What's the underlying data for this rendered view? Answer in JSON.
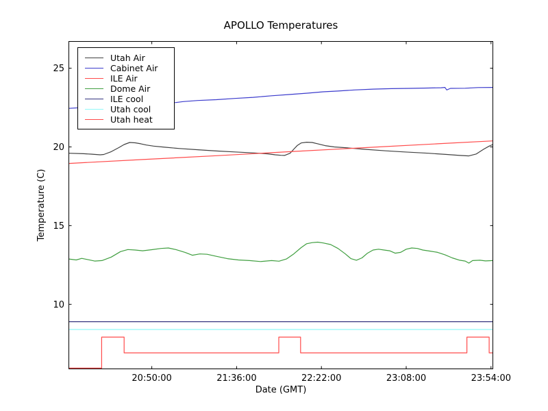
{
  "figure": {
    "title": "APOLLO Temperatures",
    "xlabel": "Date (GMT)",
    "ylabel": "Temperature (C)"
  },
  "chart_data": {
    "type": "line",
    "title": "APOLLO Temperatures",
    "xlabel": "Date (GMT)",
    "ylabel": "Temperature (C)",
    "grid": false,
    "legend_position": "upper left",
    "x_unit": "minutes after 20:05:00 GMT (left edge of plot); right edge = 23:55:00",
    "xlim": [
      0,
      230
    ],
    "ylim": [
      5.9,
      26.7
    ],
    "x_ticks": {
      "offsets": [
        45,
        91,
        137,
        183,
        229
      ],
      "labels": [
        "20:50:00",
        "21:36:00",
        "22:22:00",
        "23:08:00",
        "23:54:00"
      ]
    },
    "y_ticks": {
      "values": [
        10,
        15,
        20,
        25
      ],
      "labels": [
        "10",
        "15",
        "20",
        "25"
      ]
    },
    "series": [
      {
        "name": "Utah Air",
        "color": "#404040",
        "points": [
          [
            0,
            19.6
          ],
          [
            8,
            19.57
          ],
          [
            12,
            19.54
          ],
          [
            17,
            19.5
          ],
          [
            19,
            19.52
          ],
          [
            23,
            19.7
          ],
          [
            27,
            19.95
          ],
          [
            30,
            20.15
          ],
          [
            33,
            20.28
          ],
          [
            36,
            20.26
          ],
          [
            39,
            20.2
          ],
          [
            42,
            20.12
          ],
          [
            46,
            20.05
          ],
          [
            52,
            19.98
          ],
          [
            60,
            19.9
          ],
          [
            70,
            19.82
          ],
          [
            80,
            19.74
          ],
          [
            90,
            19.68
          ],
          [
            100,
            19.62
          ],
          [
            108,
            19.56
          ],
          [
            112,
            19.5
          ],
          [
            115,
            19.47
          ],
          [
            117,
            19.46
          ],
          [
            120,
            19.6
          ],
          [
            122,
            19.85
          ],
          [
            124,
            20.1
          ],
          [
            126,
            20.25
          ],
          [
            129,
            20.3
          ],
          [
            132,
            20.28
          ],
          [
            135,
            20.2
          ],
          [
            139,
            20.08
          ],
          [
            144,
            20.0
          ],
          [
            150,
            19.95
          ],
          [
            160,
            19.85
          ],
          [
            172,
            19.75
          ],
          [
            182,
            19.68
          ],
          [
            195,
            19.6
          ],
          [
            205,
            19.52
          ],
          [
            212,
            19.46
          ],
          [
            217,
            19.43
          ],
          [
            221,
            19.55
          ],
          [
            225,
            19.85
          ],
          [
            228,
            20.05
          ],
          [
            230,
            20.15
          ]
        ]
      },
      {
        "name": "Cabinet Air",
        "color": "#3a3acc",
        "points": [
          [
            0,
            22.45
          ],
          [
            10,
            22.52
          ],
          [
            20,
            22.58
          ],
          [
            30,
            22.65
          ],
          [
            40,
            22.72
          ],
          [
            50,
            22.78
          ],
          [
            58,
            22.82
          ],
          [
            62,
            22.88
          ],
          [
            70,
            22.95
          ],
          [
            80,
            23.0
          ],
          [
            90,
            23.08
          ],
          [
            100,
            23.15
          ],
          [
            110,
            23.25
          ],
          [
            120,
            23.33
          ],
          [
            130,
            23.42
          ],
          [
            138,
            23.5
          ],
          [
            146,
            23.55
          ],
          [
            155,
            23.62
          ],
          [
            165,
            23.67
          ],
          [
            175,
            23.7
          ],
          [
            185,
            23.72
          ],
          [
            195,
            23.74
          ],
          [
            202,
            23.76
          ],
          [
            204,
            23.78
          ],
          [
            205,
            23.62
          ],
          [
            207,
            23.72
          ],
          [
            215,
            23.73
          ],
          [
            222,
            23.77
          ],
          [
            230,
            23.78
          ]
        ]
      },
      {
        "name": "ILE Air",
        "color": "#ff4a4a",
        "points": [
          [
            0,
            18.95
          ],
          [
            40,
            19.2
          ],
          [
            80,
            19.44
          ],
          [
            120,
            19.7
          ],
          [
            160,
            19.95
          ],
          [
            200,
            20.2
          ],
          [
            230,
            20.38
          ]
        ]
      },
      {
        "name": "Dome Air",
        "color": "#3f9e3f",
        "points": [
          [
            0,
            12.88
          ],
          [
            4,
            12.82
          ],
          [
            7,
            12.92
          ],
          [
            10,
            12.85
          ],
          [
            14,
            12.75
          ],
          [
            18,
            12.78
          ],
          [
            23,
            13.0
          ],
          [
            28,
            13.35
          ],
          [
            32,
            13.48
          ],
          [
            36,
            13.45
          ],
          [
            40,
            13.4
          ],
          [
            45,
            13.47
          ],
          [
            50,
            13.55
          ],
          [
            54,
            13.58
          ],
          [
            58,
            13.48
          ],
          [
            63,
            13.3
          ],
          [
            67,
            13.12
          ],
          [
            71,
            13.2
          ],
          [
            75,
            13.18
          ],
          [
            80,
            13.05
          ],
          [
            86,
            12.9
          ],
          [
            92,
            12.82
          ],
          [
            98,
            12.78
          ],
          [
            104,
            12.72
          ],
          [
            110,
            12.78
          ],
          [
            114,
            12.74
          ],
          [
            118,
            12.88
          ],
          [
            122,
            13.2
          ],
          [
            126,
            13.6
          ],
          [
            129,
            13.85
          ],
          [
            132,
            13.92
          ],
          [
            135,
            13.95
          ],
          [
            138,
            13.9
          ],
          [
            142,
            13.8
          ],
          [
            146,
            13.55
          ],
          [
            150,
            13.2
          ],
          [
            153,
            12.9
          ],
          [
            156,
            12.8
          ],
          [
            159,
            12.95
          ],
          [
            162,
            13.25
          ],
          [
            165,
            13.45
          ],
          [
            168,
            13.5
          ],
          [
            171,
            13.45
          ],
          [
            174,
            13.4
          ],
          [
            177,
            13.25
          ],
          [
            180,
            13.3
          ],
          [
            183,
            13.5
          ],
          [
            186,
            13.58
          ],
          [
            189,
            13.55
          ],
          [
            192,
            13.45
          ],
          [
            196,
            13.38
          ],
          [
            200,
            13.3
          ],
          [
            204,
            13.15
          ],
          [
            208,
            12.95
          ],
          [
            212,
            12.8
          ],
          [
            215,
            12.75
          ],
          [
            217,
            12.62
          ],
          [
            219,
            12.78
          ],
          [
            223,
            12.8
          ],
          [
            226,
            12.76
          ],
          [
            230,
            12.78
          ]
        ]
      },
      {
        "name": "ILE cool",
        "color": "#32327d",
        "points": [
          [
            0,
            8.9
          ],
          [
            230,
            8.9
          ]
        ]
      },
      {
        "name": "Utah cool",
        "color": "#90f8f8",
        "points": [
          [
            0,
            8.4
          ],
          [
            230,
            8.4
          ]
        ]
      },
      {
        "name": "Utah heat",
        "color": "#ff4a4a",
        "points": [
          [
            0,
            5.95
          ],
          [
            17.8,
            5.95
          ],
          [
            17.8,
            7.92
          ],
          [
            30,
            7.92
          ],
          [
            30,
            6.92
          ],
          [
            113.9,
            6.92
          ],
          [
            113.9,
            7.92
          ],
          [
            125.7,
            7.92
          ],
          [
            125.7,
            6.92
          ],
          [
            215.9,
            6.92
          ],
          [
            215.9,
            7.92
          ],
          [
            228,
            7.92
          ],
          [
            228,
            6.92
          ],
          [
            230,
            6.92
          ]
        ]
      }
    ]
  }
}
